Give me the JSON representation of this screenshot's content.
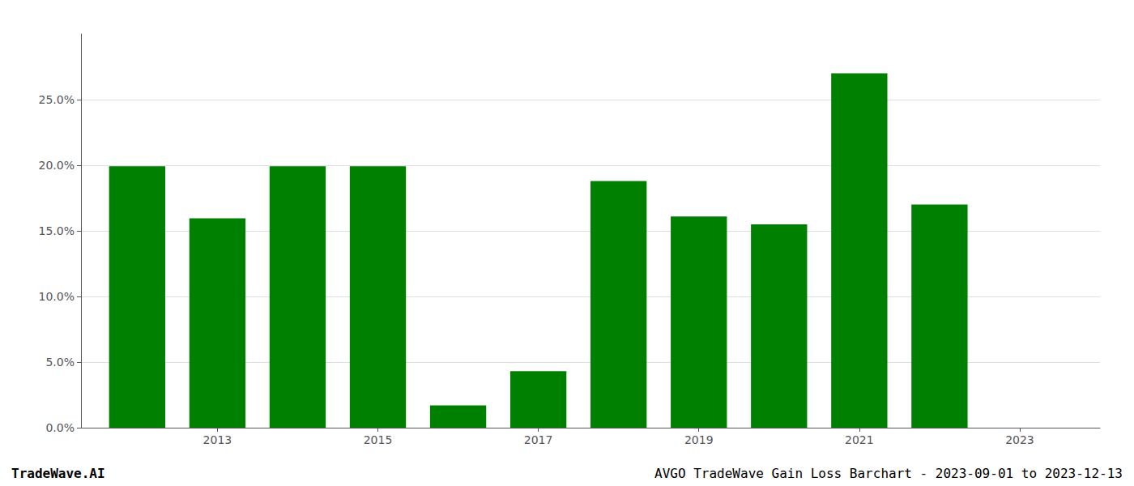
{
  "chart_data": {
    "type": "bar",
    "x": [
      2012,
      2013,
      2014,
      2015,
      2016,
      2017,
      2018,
      2019,
      2020,
      2021,
      2022,
      2023
    ],
    "values": [
      0.1993,
      0.1595,
      0.1993,
      0.1993,
      0.017,
      0.043,
      0.188,
      0.161,
      0.155,
      0.27,
      0.17,
      0.0
    ],
    "color": "#008000",
    "xlim": [
      2011.3,
      2024.0
    ],
    "xticks": [
      2013,
      2015,
      2017,
      2019,
      2021,
      2023
    ],
    "ylim": [
      0,
      0.3
    ],
    "yticks": [
      {
        "value": 0.0,
        "label": "0.0%"
      },
      {
        "value": 0.05,
        "label": "5.0%"
      },
      {
        "value": 0.1,
        "label": "10.0%"
      },
      {
        "value": 0.15,
        "label": "15.0%"
      },
      {
        "value": 0.2,
        "label": "20.0%"
      },
      {
        "value": 0.25,
        "label": "25.0%"
      }
    ],
    "grid": true,
    "annotations": [
      "TradeWave.AI",
      "AVGO TradeWave Gain Loss Barchart - 2023-09-01 to 2023-12-13"
    ]
  }
}
